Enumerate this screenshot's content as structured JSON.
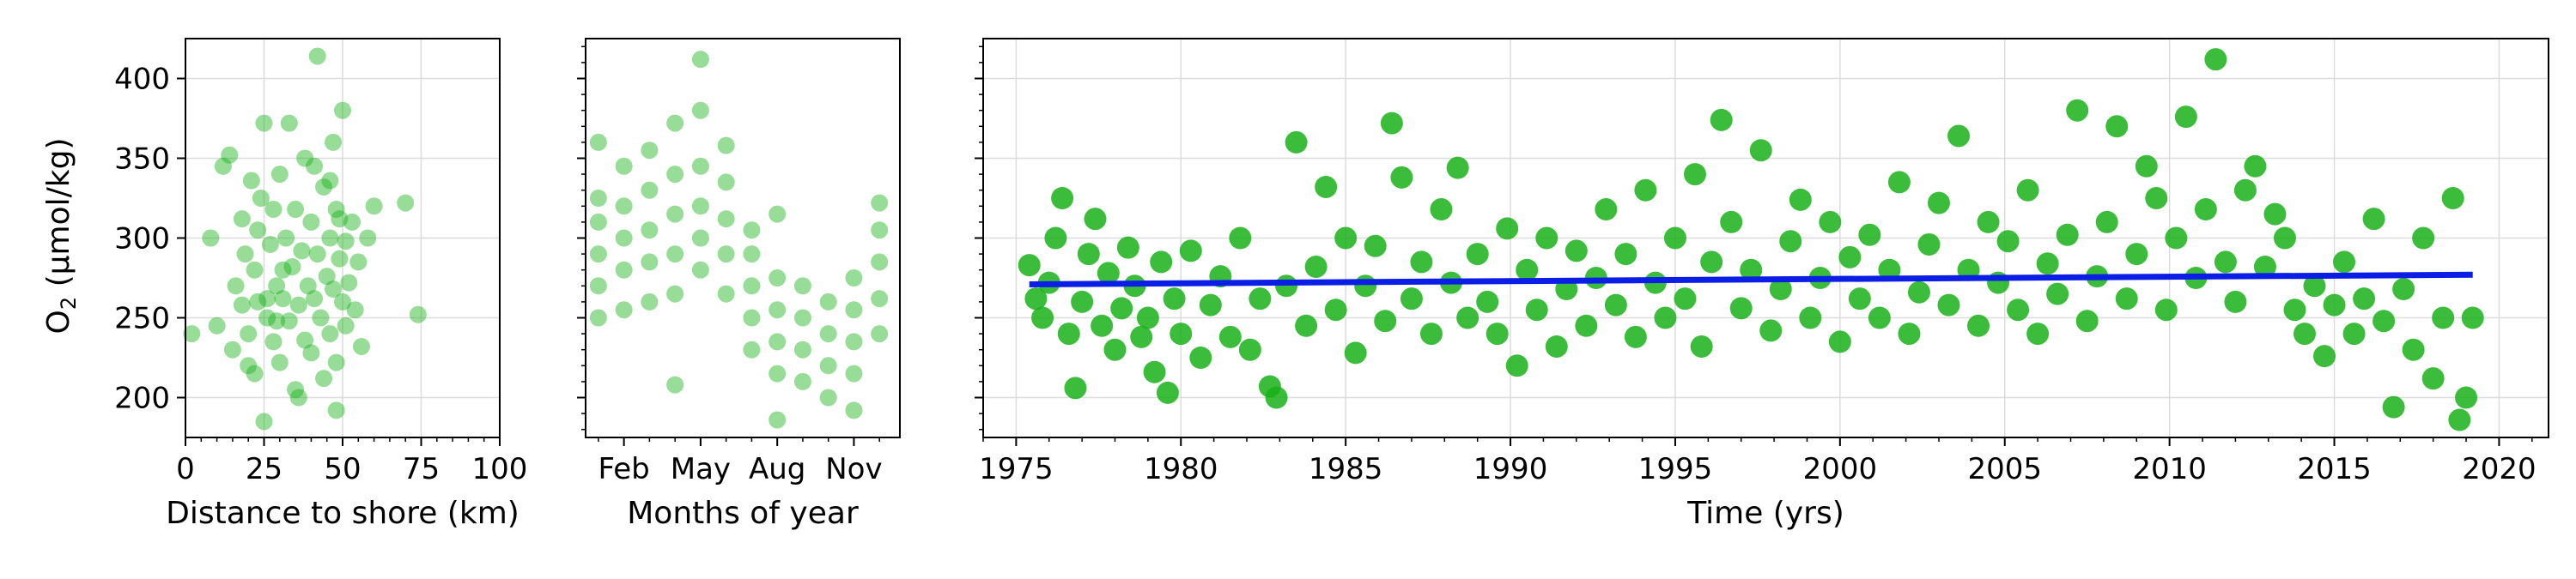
{
  "colors": {
    "point": "#19b219",
    "trend": "#0a1ee6",
    "grid": "#dcdcdc",
    "axis": "#000000"
  },
  "chart_data": [
    {
      "type": "scatter",
      "xlabel": "Distance to shore (km)",
      "ylabel": "O2 (µmol/kg)",
      "ylabel_main": "O",
      "ylabel_sub": "2",
      "ylabel_unit": " (µmol/kg)",
      "xlim": [
        0,
        100
      ],
      "ylim": [
        175,
        425
      ],
      "xticks": [
        0,
        25,
        50,
        75,
        100
      ],
      "xtick_labels": [
        "0",
        "25",
        "50",
        "75",
        "100"
      ],
      "yticks": [
        200,
        250,
        300,
        350,
        400
      ],
      "ytick_labels": [
        "200",
        "250",
        "300",
        "350",
        "400"
      ],
      "grid": true,
      "points": [
        [
          2,
          240
        ],
        [
          8,
          300
        ],
        [
          10,
          245
        ],
        [
          12,
          345
        ],
        [
          14,
          352
        ],
        [
          15,
          230
        ],
        [
          16,
          270
        ],
        [
          18,
          312
        ],
        [
          18,
          258
        ],
        [
          19,
          290
        ],
        [
          20,
          240
        ],
        [
          21,
          336
        ],
        [
          22,
          280
        ],
        [
          22,
          215
        ],
        [
          23,
          260
        ],
        [
          23,
          305
        ],
        [
          24,
          325
        ],
        [
          25,
          185
        ],
        [
          25,
          372
        ],
        [
          26,
          250
        ],
        [
          27,
          296
        ],
        [
          28,
          235
        ],
        [
          28,
          318
        ],
        [
          29,
          270
        ],
        [
          30,
          340
        ],
        [
          30,
          222
        ],
        [
          31,
          262
        ],
        [
          32,
          300
        ],
        [
          33,
          248
        ],
        [
          33,
          372
        ],
        [
          34,
          282
        ],
        [
          35,
          205
        ],
        [
          35,
          318
        ],
        [
          36,
          258
        ],
        [
          37,
          292
        ],
        [
          38,
          236
        ],
        [
          38,
          350
        ],
        [
          39,
          270
        ],
        [
          40,
          310
        ],
        [
          40,
          228
        ],
        [
          41,
          262
        ],
        [
          42,
          290
        ],
        [
          42,
          414
        ],
        [
          43,
          250
        ],
        [
          44,
          332
        ],
        [
          44,
          212
        ],
        [
          45,
          276
        ],
        [
          46,
          300
        ],
        [
          46,
          240
        ],
        [
          47,
          360
        ],
        [
          47,
          268
        ],
        [
          48,
          222
        ],
        [
          48,
          318
        ],
        [
          49,
          287
        ],
        [
          50,
          260
        ],
        [
          50,
          380
        ],
        [
          51,
          245
        ],
        [
          51,
          298
        ],
        [
          52,
          272
        ],
        [
          53,
          310
        ],
        [
          54,
          255
        ],
        [
          55,
          285
        ],
        [
          56,
          232
        ],
        [
          58,
          300
        ],
        [
          60,
          320
        ],
        [
          70,
          322
        ],
        [
          74,
          252
        ],
        [
          48,
          192
        ],
        [
          36,
          200
        ],
        [
          29,
          248
        ],
        [
          41,
          345
        ],
        [
          46,
          336
        ],
        [
          49,
          312
        ],
        [
          31,
          280
        ],
        [
          26,
          262
        ],
        [
          20,
          220
        ]
      ]
    },
    {
      "type": "scatter",
      "xlabel": "Months of year",
      "xlim": [
        0.5,
        12.8
      ],
      "ylim": [
        175,
        425
      ],
      "xticks": [
        2,
        5,
        8,
        11
      ],
      "xtick_labels": [
        "Feb",
        "May",
        "Aug",
        "Nov"
      ],
      "grid": false,
      "points": [
        [
          1,
          250
        ],
        [
          1,
          270
        ],
        [
          1,
          290
        ],
        [
          1,
          310
        ],
        [
          1,
          325
        ],
        [
          1,
          360
        ],
        [
          2,
          255
        ],
        [
          2,
          280
        ],
        [
          2,
          300
        ],
        [
          2,
          320
        ],
        [
          2,
          345
        ],
        [
          3,
          260
        ],
        [
          3,
          285
        ],
        [
          3,
          305
        ],
        [
          3,
          330
        ],
        [
          3,
          355
        ],
        [
          4,
          265
        ],
        [
          4,
          290
        ],
        [
          4,
          315
        ],
        [
          4,
          340
        ],
        [
          4,
          372
        ],
        [
          4,
          208
        ],
        [
          5,
          280
        ],
        [
          5,
          300
        ],
        [
          5,
          320
        ],
        [
          5,
          345
        ],
        [
          5,
          380
        ],
        [
          5,
          412
        ],
        [
          6,
          265
        ],
        [
          6,
          290
        ],
        [
          6,
          312
        ],
        [
          6,
          335
        ],
        [
          6,
          358
        ],
        [
          7,
          230
        ],
        [
          7,
          250
        ],
        [
          7,
          270
        ],
        [
          7,
          290
        ],
        [
          7,
          305
        ],
        [
          8,
          215
        ],
        [
          8,
          235
        ],
        [
          8,
          255
        ],
        [
          8,
          275
        ],
        [
          8,
          315
        ],
        [
          8,
          186
        ],
        [
          9,
          210
        ],
        [
          9,
          230
        ],
        [
          9,
          250
        ],
        [
          9,
          270
        ],
        [
          10,
          200
        ],
        [
          10,
          220
        ],
        [
          10,
          240
        ],
        [
          10,
          260
        ],
        [
          11,
          192
        ],
        [
          11,
          215
        ],
        [
          11,
          235
        ],
        [
          11,
          255
        ],
        [
          11,
          275
        ],
        [
          12,
          240
        ],
        [
          12,
          262
        ],
        [
          12,
          285
        ],
        [
          12,
          305
        ],
        [
          12,
          322
        ]
      ]
    },
    {
      "type": "scatter",
      "xlabel": "Time (yrs)",
      "xlim": [
        1974,
        2021.5
      ],
      "ylim": [
        175,
        425
      ],
      "xticks": [
        1975,
        1980,
        1985,
        1990,
        1995,
        2000,
        2005,
        2010,
        2015,
        2020
      ],
      "xtick_labels": [
        "1975",
        "1980",
        "1985",
        "1990",
        "1995",
        "2000",
        "2005",
        "2010",
        "2015",
        "2020"
      ],
      "grid": true,
      "trend": {
        "x": [
          1975.4,
          2019.2
        ],
        "y": [
          271,
          277
        ]
      },
      "points": [
        [
          1975.4,
          283
        ],
        [
          1975.6,
          262
        ],
        [
          1975.8,
          250
        ],
        [
          1976.0,
          272
        ],
        [
          1976.2,
          300
        ],
        [
          1976.4,
          325
        ],
        [
          1976.6,
          240
        ],
        [
          1976.8,
          206
        ],
        [
          1977.0,
          260
        ],
        [
          1977.2,
          290
        ],
        [
          1977.4,
          312
        ],
        [
          1977.6,
          245
        ],
        [
          1977.8,
          278
        ],
        [
          1978.0,
          230
        ],
        [
          1978.2,
          256
        ],
        [
          1978.4,
          294
        ],
        [
          1978.6,
          270
        ],
        [
          1978.8,
          238
        ],
        [
          1979.0,
          250
        ],
        [
          1979.2,
          216
        ],
        [
          1979.4,
          285
        ],
        [
          1979.6,
          203
        ],
        [
          1979.8,
          262
        ],
        [
          1980.0,
          240
        ],
        [
          1980.3,
          292
        ],
        [
          1980.6,
          225
        ],
        [
          1980.9,
          258
        ],
        [
          1981.2,
          276
        ],
        [
          1981.5,
          238
        ],
        [
          1981.8,
          300
        ],
        [
          1982.1,
          230
        ],
        [
          1982.4,
          262
        ],
        [
          1982.7,
          207
        ],
        [
          1982.9,
          200
        ],
        [
          1983.2,
          270
        ],
        [
          1983.5,
          360
        ],
        [
          1983.8,
          245
        ],
        [
          1984.1,
          282
        ],
        [
          1984.4,
          332
        ],
        [
          1984.7,
          255
        ],
        [
          1985.0,
          300
        ],
        [
          1985.3,
          228
        ],
        [
          1985.6,
          270
        ],
        [
          1985.9,
          295
        ],
        [
          1986.2,
          248
        ],
        [
          1986.4,
          372
        ],
        [
          1986.7,
          338
        ],
        [
          1987.0,
          262
        ],
        [
          1987.3,
          285
        ],
        [
          1987.6,
          240
        ],
        [
          1987.9,
          318
        ],
        [
          1988.2,
          272
        ],
        [
          1988.4,
          344
        ],
        [
          1988.7,
          250
        ],
        [
          1989.0,
          290
        ],
        [
          1989.3,
          260
        ],
        [
          1989.6,
          240
        ],
        [
          1989.9,
          306
        ],
        [
          1990.2,
          220
        ],
        [
          1990.5,
          280
        ],
        [
          1990.8,
          255
        ],
        [
          1991.1,
          300
        ],
        [
          1991.4,
          232
        ],
        [
          1991.7,
          268
        ],
        [
          1992.0,
          292
        ],
        [
          1992.3,
          245
        ],
        [
          1992.6,
          275
        ],
        [
          1992.9,
          318
        ],
        [
          1993.2,
          258
        ],
        [
          1993.5,
          290
        ],
        [
          1993.8,
          238
        ],
        [
          1994.1,
          330
        ],
        [
          1994.4,
          272
        ],
        [
          1994.7,
          250
        ],
        [
          1995.0,
          300
        ],
        [
          1995.3,
          262
        ],
        [
          1995.6,
          340
        ],
        [
          1995.8,
          232
        ],
        [
          1996.1,
          285
        ],
        [
          1996.4,
          374
        ],
        [
          1996.7,
          310
        ],
        [
          1997.0,
          256
        ],
        [
          1997.3,
          280
        ],
        [
          1997.6,
          355
        ],
        [
          1997.9,
          242
        ],
        [
          1998.2,
          268
        ],
        [
          1998.5,
          298
        ],
        [
          1998.8,
          324
        ],
        [
          1999.1,
          250
        ],
        [
          1999.4,
          275
        ],
        [
          1999.7,
          310
        ],
        [
          2000.0,
          235
        ],
        [
          2000.3,
          288
        ],
        [
          2000.6,
          262
        ],
        [
          2000.9,
          302
        ],
        [
          2001.2,
          250
        ],
        [
          2001.5,
          280
        ],
        [
          2001.8,
          335
        ],
        [
          2002.1,
          240
        ],
        [
          2002.4,
          266
        ],
        [
          2002.7,
          296
        ],
        [
          2003.0,
          322
        ],
        [
          2003.3,
          258
        ],
        [
          2003.6,
          364
        ],
        [
          2003.9,
          280
        ],
        [
          2004.2,
          245
        ],
        [
          2004.5,
          310
        ],
        [
          2004.8,
          272
        ],
        [
          2005.1,
          298
        ],
        [
          2005.4,
          255
        ],
        [
          2005.7,
          330
        ],
        [
          2006.0,
          240
        ],
        [
          2006.3,
          284
        ],
        [
          2006.6,
          265
        ],
        [
          2006.9,
          302
        ],
        [
          2007.2,
          380
        ],
        [
          2007.5,
          248
        ],
        [
          2007.8,
          276
        ],
        [
          2008.1,
          310
        ],
        [
          2008.4,
          370
        ],
        [
          2008.7,
          262
        ],
        [
          2009.0,
          290
        ],
        [
          2009.3,
          345
        ],
        [
          2009.6,
          325
        ],
        [
          2009.9,
          255
        ],
        [
          2010.2,
          300
        ],
        [
          2010.5,
          376
        ],
        [
          2010.8,
          275
        ],
        [
          2011.1,
          318
        ],
        [
          2011.4,
          412
        ],
        [
          2011.7,
          285
        ],
        [
          2012.0,
          260
        ],
        [
          2012.3,
          330
        ],
        [
          2012.6,
          345
        ],
        [
          2012.9,
          282
        ],
        [
          2013.2,
          315
        ],
        [
          2013.5,
          300
        ],
        [
          2013.8,
          255
        ],
        [
          2014.1,
          240
        ],
        [
          2014.4,
          270
        ],
        [
          2014.7,
          226
        ],
        [
          2015.0,
          258
        ],
        [
          2015.3,
          285
        ],
        [
          2015.6,
          240
        ],
        [
          2015.9,
          262
        ],
        [
          2016.2,
          312
        ],
        [
          2016.5,
          248
        ],
        [
          2016.8,
          194
        ],
        [
          2017.1,
          268
        ],
        [
          2017.4,
          230
        ],
        [
          2017.7,
          300
        ],
        [
          2018.0,
          212
        ],
        [
          2018.3,
          250
        ],
        [
          2018.6,
          325
        ],
        [
          2018.8,
          186
        ],
        [
          2019.0,
          200
        ],
        [
          2019.2,
          250
        ]
      ]
    }
  ]
}
